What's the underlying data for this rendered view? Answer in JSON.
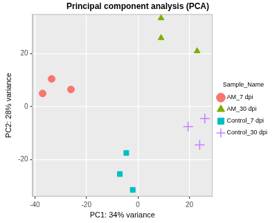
{
  "chart_data": {
    "type": "scatter",
    "title": "Principal component analysis (PCA)",
    "x_label": "PC1: 34% variance",
    "y_label": "PC2: 28% variance",
    "legend_title": "Sample_Name",
    "legend": "right",
    "grid": true,
    "xlim": [
      -41,
      29
    ],
    "xticks": [
      -40,
      -20,
      0,
      20
    ],
    "ylim": [
      -34,
      35
    ],
    "yticks": [
      -20,
      0,
      20
    ],
    "series": [
      {
        "name": "AM_7 dpi",
        "color": "#F8766D",
        "marker": "circle",
        "x": [
          -37,
          -33.5,
          -26
        ],
        "values": [
          5,
          10.5,
          6.5
        ]
      },
      {
        "name": "AM_30 dpi",
        "color": "#7CAE00",
        "marker": "triangle",
        "x": [
          9,
          9,
          23
        ],
        "values": [
          33.5,
          26,
          21
        ]
      },
      {
        "name": "Control_7 dpi",
        "color": "#00BFC4",
        "marker": "rect",
        "x": [
          -4.5,
          -7,
          -2
        ],
        "values": [
          -17.5,
          -25.5,
          -31.5
        ]
      },
      {
        "name": "Control_30 dpi",
        "color": "#C77CFF",
        "marker": "cross",
        "x": [
          19.5,
          26,
          24
        ],
        "values": [
          -7.5,
          -4.5,
          -14.5
        ]
      }
    ]
  }
}
